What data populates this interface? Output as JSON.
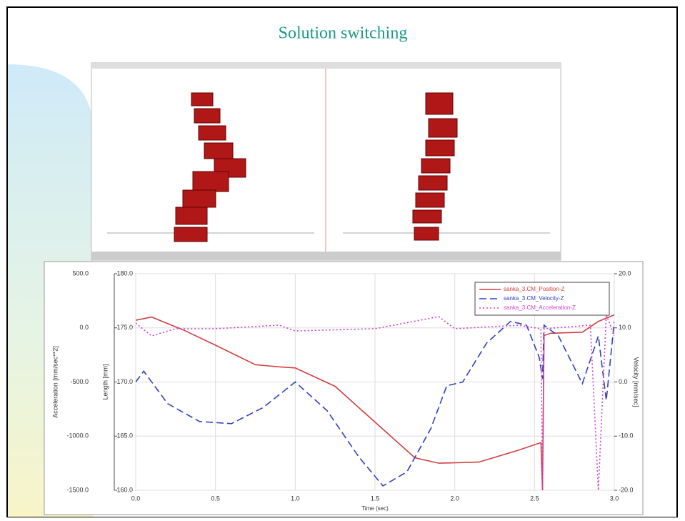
{
  "slide": {
    "title": "Solution switching"
  },
  "chart_data": {
    "type": "line",
    "xlabel": "Time (sec)",
    "ylabel": "Length [mm]",
    "y2label": "Velocity [mm/sec]",
    "y3label": "Acceleration [mm/sec**2]",
    "xlim": [
      0,
      3
    ],
    "xticks": [
      {
        "value": 0,
        "label": "0.0"
      },
      {
        "value": 0.5,
        "label": "0.5"
      },
      {
        "value": 1,
        "label": "1.0"
      },
      {
        "value": 1.5,
        "label": "1.5"
      },
      {
        "value": 2,
        "label": "2.0"
      },
      {
        "value": 2.5,
        "label": "2.5"
      },
      {
        "value": 3,
        "label": "3.0"
      }
    ],
    "ylim": [
      160,
      180
    ],
    "yticks": [
      {
        "value": 180,
        "label": "180.0"
      },
      {
        "value": 175,
        "label": "175.0"
      },
      {
        "value": 170,
        "label": "170.0"
      },
      {
        "value": 165,
        "label": "165.0"
      },
      {
        "value": 160,
        "label": "160.0"
      }
    ],
    "y2lim": [
      -20,
      20
    ],
    "y2ticks": [
      {
        "value": 20,
        "label": "20.0"
      },
      {
        "value": 10,
        "label": "10.0"
      },
      {
        "value": 0,
        "label": "0.0"
      },
      {
        "value": -10,
        "label": "-10.0"
      },
      {
        "value": -20,
        "label": "-20.0"
      }
    ],
    "y3lim": [
      -1500,
      500
    ],
    "y3ticks": [
      {
        "value": 500,
        "label": "500.0"
      },
      {
        "value": 0,
        "label": "0.0"
      },
      {
        "value": -500,
        "label": "-500.0"
      },
      {
        "value": -1000,
        "label": "-1000.0"
      },
      {
        "value": -1500,
        "label": "-1500.0"
      }
    ],
    "grid": true,
    "legend": "upper right",
    "series": [
      {
        "name": "sanka_3.CM_Position-Z",
        "color": "#d04040",
        "dash": "solid",
        "axis": "y",
        "x": [
          0,
          0.1,
          0.3,
          0.5,
          0.75,
          0.9,
          1.0,
          1.25,
          1.5,
          1.75,
          1.9,
          2.15,
          2.4,
          2.54,
          2.55,
          2.56,
          2.6,
          2.8,
          2.9,
          3.0
        ],
        "values": [
          175.7,
          176.0,
          174.8,
          173.4,
          171.6,
          171.4,
          171.3,
          169.6,
          166.3,
          163.0,
          162.5,
          162.6,
          163.7,
          164.4,
          160,
          174.3,
          174.5,
          174.6,
          175.6,
          176.2
        ]
      },
      {
        "name": "sanka_3.CM_Velocity-Z",
        "color": "#3040c0",
        "dash": "dashed",
        "axis": "y2",
        "x": [
          0,
          0.05,
          0.2,
          0.4,
          0.6,
          0.8,
          1.0,
          1.2,
          1.4,
          1.55,
          1.7,
          1.85,
          1.95,
          2.05,
          2.2,
          2.35,
          2.45,
          2.53,
          2.55,
          2.56,
          2.65,
          2.8,
          2.9,
          2.95,
          3.0
        ],
        "values": [
          0,
          2.0,
          -4,
          -7.3,
          -7.7,
          -4.7,
          0,
          -5.3,
          -13.9,
          -19.2,
          -16.6,
          -8.6,
          -0.7,
          0,
          7.2,
          11.2,
          10.5,
          4.5,
          0.6,
          10.5,
          8.5,
          -0.3,
          8.5,
          -3.4,
          11.2
        ]
      },
      {
        "name": "sanka_3.CM_Acceleration-Z",
        "color": "#d040d0",
        "dash": "dotted",
        "axis": "y3",
        "x": [
          0,
          0.1,
          0.25,
          0.5,
          0.9,
          1.0,
          1.5,
          1.9,
          2.0,
          2.4,
          2.54,
          2.55,
          2.56,
          2.85,
          2.9,
          2.95,
          3.0
        ],
        "values": [
          44,
          -74,
          -8,
          -8,
          25,
          -28,
          -8,
          104,
          -8,
          25,
          -8,
          -1500,
          -8,
          25,
          -1500,
          124,
          -74
        ]
      }
    ]
  }
}
